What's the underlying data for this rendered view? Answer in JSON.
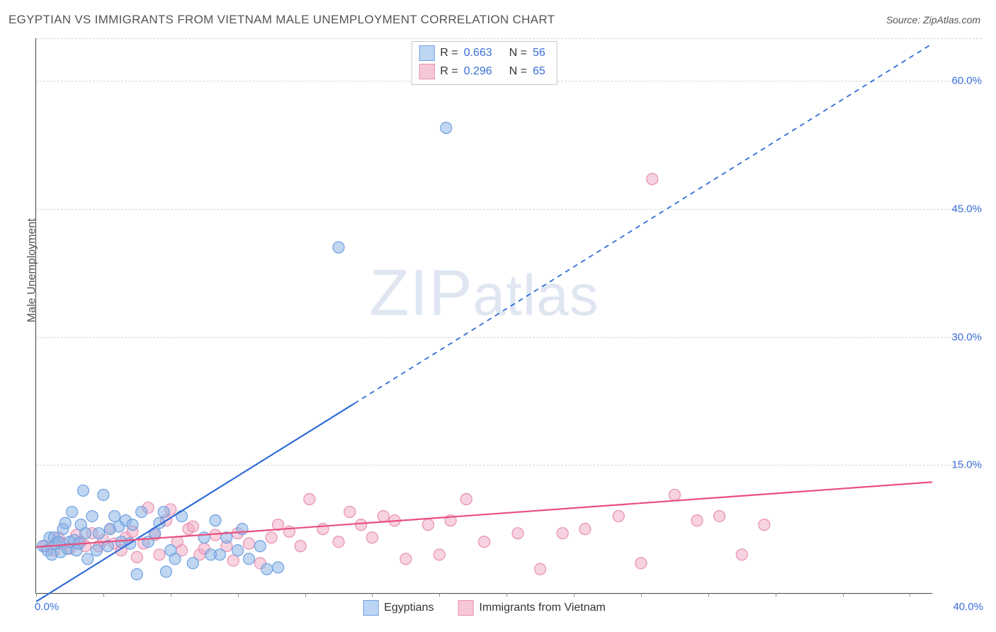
{
  "title": "EGYPTIAN VS IMMIGRANTS FROM VIETNAM MALE UNEMPLOYMENT CORRELATION CHART",
  "source": "Source: ZipAtlas.com",
  "y_axis_label": "Male Unemployment",
  "watermark_text_big": "ZIP",
  "watermark_text_small": "atlas",
  "chart": {
    "type": "scatter",
    "xlim": [
      0,
      40
    ],
    "ylim": [
      0,
      65
    ],
    "x_ticks": [
      0,
      3,
      6,
      9,
      12,
      15,
      18,
      21,
      24,
      27,
      30,
      33,
      36,
      39
    ],
    "x_tick_labels_shown": {
      "0": "0.0%",
      "40": "40.0%"
    },
    "y_gridlines": [
      15,
      30,
      45,
      60,
      65
    ],
    "y_tick_labels": {
      "15": "15.0%",
      "30": "30.0%",
      "45": "45.0%",
      "60": "60.0%"
    },
    "background_color": "#ffffff",
    "grid_color": "#d6d6d6",
    "axis_color": "#444444",
    "marker_radius": 8,
    "marker_stroke_width": 1.2,
    "trendline_width": 2.2
  },
  "legend_top": [
    {
      "swatch_fill": "#bcd5f2",
      "swatch_border": "#6fa0e0",
      "r_label": "R =",
      "r_value": "0.663",
      "n_label": "N =",
      "n_value": "56"
    },
    {
      "swatch_fill": "#f6c8d6",
      "swatch_border": "#e78fb0",
      "r_label": "R =",
      "r_value": "0.296",
      "n_label": "N =",
      "n_value": "65"
    }
  ],
  "legend_bottom": [
    {
      "swatch_fill": "#bcd5f2",
      "swatch_border": "#6fa0e0",
      "label": "Egyptians"
    },
    {
      "swatch_fill": "#f6c8d6",
      "swatch_border": "#e78fb0",
      "label": "Immigrants from Vietnam"
    }
  ],
  "series": [
    {
      "name": "Egyptians",
      "color_fill": "rgba(140,180,230,0.55)",
      "color_stroke": "#6fa0e0",
      "trendline_color": "#2e6bd6",
      "trendline": {
        "x1": 0,
        "y1": -1.0,
        "x2": 20.5,
        "y2": 32.5,
        "dashed_from_x": 14.2
      },
      "points": [
        [
          0.3,
          5.5
        ],
        [
          0.5,
          5.0
        ],
        [
          0.6,
          6.5
        ],
        [
          0.7,
          4.5
        ],
        [
          0.8,
          6.5
        ],
        [
          0.9,
          5.8
        ],
        [
          1.0,
          6.0
        ],
        [
          1.1,
          4.8
        ],
        [
          1.2,
          7.5
        ],
        [
          1.3,
          8.2
        ],
        [
          1.4,
          5.2
        ],
        [
          1.5,
          6.0
        ],
        [
          1.6,
          9.5
        ],
        [
          1.7,
          6.2
        ],
        [
          1.8,
          5.0
        ],
        [
          1.9,
          5.8
        ],
        [
          2.0,
          8.0
        ],
        [
          2.1,
          12.0
        ],
        [
          2.2,
          7.0
        ],
        [
          2.3,
          4.0
        ],
        [
          2.5,
          9.0
        ],
        [
          2.7,
          5.0
        ],
        [
          2.8,
          7.0
        ],
        [
          3.0,
          11.5
        ],
        [
          3.2,
          5.5
        ],
        [
          3.3,
          7.5
        ],
        [
          3.5,
          9.0
        ],
        [
          3.7,
          7.8
        ],
        [
          3.8,
          6.0
        ],
        [
          4.0,
          8.5
        ],
        [
          4.2,
          5.8
        ],
        [
          4.3,
          8.0
        ],
        [
          4.5,
          2.2
        ],
        [
          4.7,
          9.5
        ],
        [
          5.0,
          6.0
        ],
        [
          5.3,
          7.0
        ],
        [
          5.5,
          8.2
        ],
        [
          5.7,
          9.5
        ],
        [
          5.8,
          2.5
        ],
        [
          6.0,
          5.0
        ],
        [
          6.2,
          4.0
        ],
        [
          6.5,
          9.0
        ],
        [
          7.0,
          3.5
        ],
        [
          7.5,
          6.5
        ],
        [
          7.8,
          4.5
        ],
        [
          8.0,
          8.5
        ],
        [
          8.2,
          4.5
        ],
        [
          8.5,
          6.5
        ],
        [
          9.0,
          5.0
        ],
        [
          9.2,
          7.5
        ],
        [
          9.5,
          4.0
        ],
        [
          10.0,
          5.5
        ],
        [
          10.3,
          2.8
        ],
        [
          10.8,
          3.0
        ],
        [
          13.5,
          40.5
        ],
        [
          18.3,
          54.5
        ]
      ]
    },
    {
      "name": "Immigrants from Vietnam",
      "color_fill": "rgba(240,165,195,0.50)",
      "color_stroke": "#e78fb0",
      "trendline_color": "#e94f7e",
      "trendline": {
        "x1": 0,
        "y1": 5.4,
        "x2": 40,
        "y2": 13.0,
        "dashed_from_x": 40
      },
      "points": [
        [
          0.4,
          5.5
        ],
        [
          0.8,
          5.0
        ],
        [
          1.0,
          6.5
        ],
        [
          1.2,
          5.8
        ],
        [
          1.5,
          5.2
        ],
        [
          1.8,
          6.8
        ],
        [
          2.0,
          6.0
        ],
        [
          2.2,
          5.5
        ],
        [
          2.5,
          7.0
        ],
        [
          2.8,
          5.5
        ],
        [
          3.0,
          6.2
        ],
        [
          3.3,
          7.5
        ],
        [
          3.5,
          5.8
        ],
        [
          3.8,
          5.0
        ],
        [
          4.0,
          6.5
        ],
        [
          4.3,
          7.2
        ],
        [
          4.5,
          4.2
        ],
        [
          4.8,
          5.8
        ],
        [
          5.0,
          10.0
        ],
        [
          5.3,
          6.8
        ],
        [
          5.5,
          4.5
        ],
        [
          5.8,
          8.5
        ],
        [
          6.0,
          9.8
        ],
        [
          6.3,
          6.0
        ],
        [
          6.5,
          5.0
        ],
        [
          6.8,
          7.5
        ],
        [
          7.0,
          7.8
        ],
        [
          7.3,
          4.5
        ],
        [
          7.5,
          5.2
        ],
        [
          8.0,
          6.8
        ],
        [
          8.5,
          5.5
        ],
        [
          8.8,
          3.8
        ],
        [
          9.0,
          7.0
        ],
        [
          9.5,
          5.8
        ],
        [
          10.0,
          3.5
        ],
        [
          10.5,
          6.5
        ],
        [
          10.8,
          8.0
        ],
        [
          11.3,
          7.2
        ],
        [
          11.8,
          5.5
        ],
        [
          12.2,
          11.0
        ],
        [
          12.8,
          7.5
        ],
        [
          13.5,
          6.0
        ],
        [
          14.0,
          9.5
        ],
        [
          14.5,
          8.0
        ],
        [
          15.0,
          6.5
        ],
        [
          15.5,
          9.0
        ],
        [
          16.0,
          8.5
        ],
        [
          16.5,
          4.0
        ],
        [
          17.5,
          8.0
        ],
        [
          18.0,
          4.5
        ],
        [
          18.5,
          8.5
        ],
        [
          19.2,
          11.0
        ],
        [
          20.0,
          6.0
        ],
        [
          21.5,
          7.0
        ],
        [
          22.5,
          2.8
        ],
        [
          23.5,
          7.0
        ],
        [
          24.5,
          7.5
        ],
        [
          26.0,
          9.0
        ],
        [
          27.0,
          3.5
        ],
        [
          28.5,
          11.5
        ],
        [
          29.5,
          8.5
        ],
        [
          30.5,
          9.0
        ],
        [
          31.5,
          4.5
        ],
        [
          32.5,
          8.0
        ],
        [
          27.5,
          48.5
        ]
      ]
    }
  ]
}
